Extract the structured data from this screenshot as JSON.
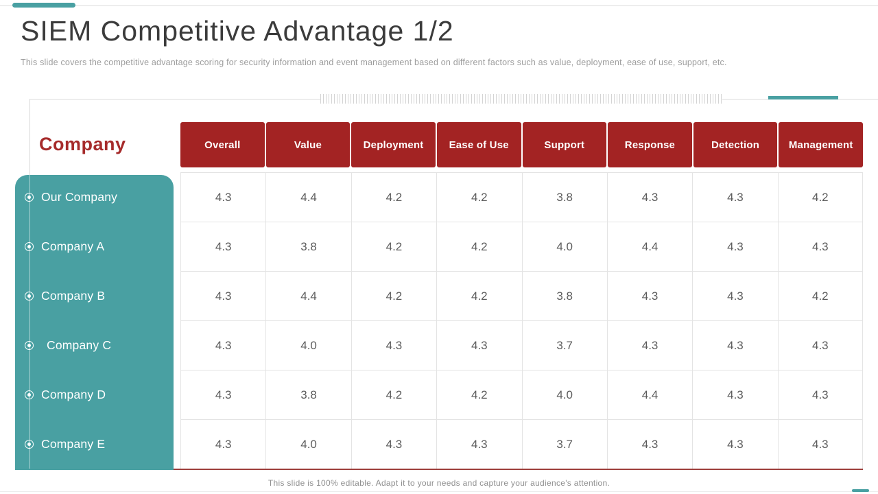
{
  "page": {
    "title": "SIEM Competitive Advantage 1/2",
    "subtitle": "This slide covers the competitive advantage scoring for security information and event management based on different factors such as value, deployment, ease of use, support, etc.",
    "row_header_label": "Company",
    "footer_note": "This slide is 100% editable. Adapt it to your needs and capture your audience's attention."
  },
  "colors": {
    "accent_teal": "#49A0A2",
    "header_red": "#A32323",
    "label_red": "#A62B2B",
    "bottom_rule_red": "#9E3F3C"
  },
  "chart_data": {
    "type": "table",
    "title": "SIEM Competitive Advantage 1/2",
    "row_header": "Company",
    "columns": [
      "Overall",
      "Value",
      "Deployment",
      "Ease of Use",
      "Support",
      "Response",
      "Detection",
      "Management"
    ],
    "rows": [
      {
        "label": "Our Company",
        "values": [
          "4.3",
          "4.4",
          "4.2",
          "4.2",
          "3.8",
          "4.3",
          "4.3",
          "4.2"
        ]
      },
      {
        "label": "Company A",
        "values": [
          "4.3",
          "3.8",
          "4.2",
          "4.2",
          "4.0",
          "4.4",
          "4.3",
          "4.3"
        ]
      },
      {
        "label": "Company B",
        "values": [
          "4.3",
          "4.4",
          "4.2",
          "4.2",
          "3.8",
          "4.3",
          "4.3",
          "4.2"
        ]
      },
      {
        "label": "Company C",
        "indent": true,
        "values": [
          "4.3",
          "4.0",
          "4.3",
          "4.3",
          "3.7",
          "4.3",
          "4.3",
          "4.3"
        ]
      },
      {
        "label": "Company D",
        "values": [
          "4.3",
          "3.8",
          "4.2",
          "4.2",
          "4.0",
          "4.4",
          "4.3",
          "4.3"
        ]
      },
      {
        "label": "Company E",
        "values": [
          "4.3",
          "4.0",
          "4.3",
          "4.3",
          "3.7",
          "4.3",
          "4.3",
          "4.3"
        ]
      }
    ]
  }
}
